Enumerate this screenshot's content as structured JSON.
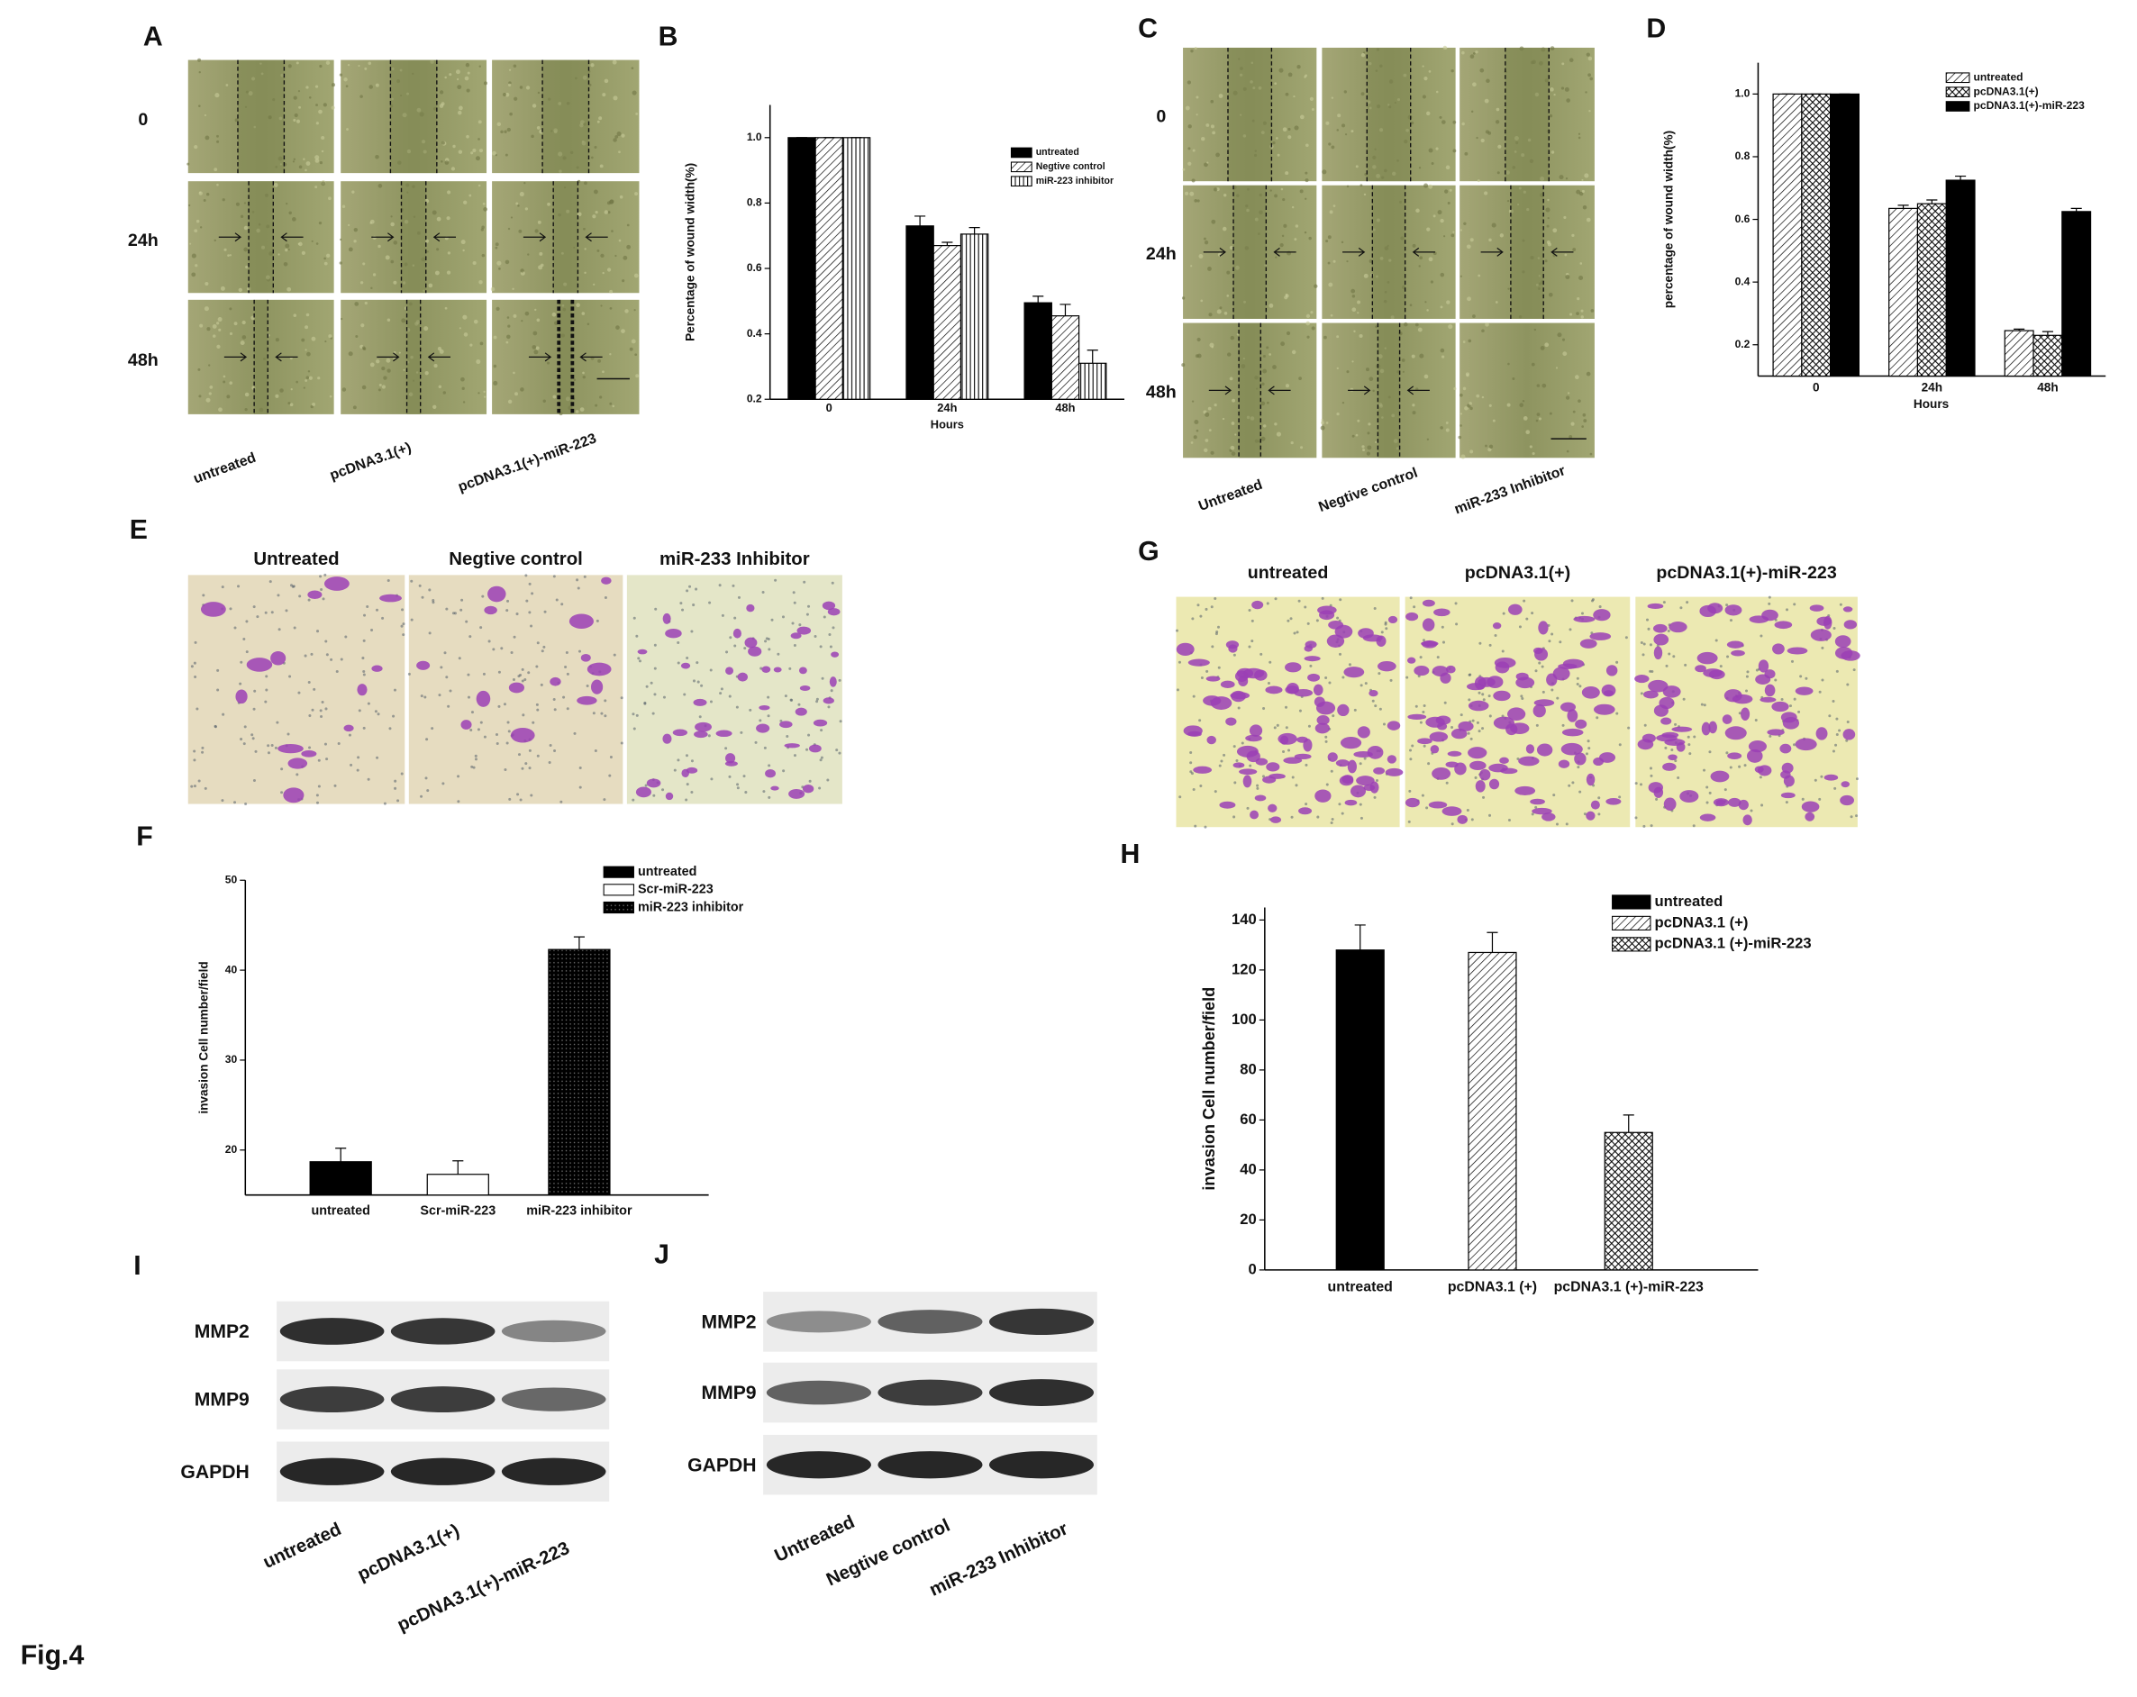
{
  "figure_label": "Fig.4",
  "panels": {
    "A": {
      "letter": "A",
      "rows": [
        "0",
        "24h",
        "48h"
      ],
      "columns": [
        "untreated",
        "pcDNA3.1(+)",
        "pcDNA3.1(+)-miR-223"
      ]
    },
    "C": {
      "letter": "C",
      "rows": [
        "0",
        "24h",
        "48h"
      ],
      "columns": [
        "Untreated",
        "Negtive control",
        "miR-233 Inhibitor"
      ]
    },
    "E": {
      "letter": "E",
      "columns": [
        "Untreated",
        "Negtive control",
        "miR-233 Inhibitor"
      ]
    },
    "G": {
      "letter": "G",
      "columns": [
        "untreated",
        "pcDNA3.1(+)",
        "pcDNA3.1(+)-miR-223"
      ]
    },
    "I": {
      "letter": "I",
      "proteins": [
        "MMP2",
        "MMP9",
        "GAPDH"
      ],
      "columns": [
        "untreated",
        "pcDNA3.1(+)",
        "pcDNA3.1(+)-miR-223"
      ]
    },
    "J": {
      "letter": "J",
      "proteins": [
        "MMP2",
        "MMP9",
        "GAPDH"
      ],
      "columns": [
        "Untreated",
        "Negtive control",
        "miR-233 Inhibitor"
      ]
    }
  },
  "chart_data": [
    {
      "panel": "B",
      "type": "bar",
      "y_label": "Percentage of wound width(%)",
      "x_label": "Hours",
      "categories": [
        "0",
        "24h",
        "48h"
      ],
      "ylim": [
        0.2,
        1.1
      ],
      "yticks": [
        0.2,
        0.4,
        0.6,
        0.8,
        {
          "value": 1,
          "label": "1.0"
        }
      ],
      "series": [
        {
          "name": "untreated",
          "color": "#000000",
          "pattern": "solid",
          "values": [
            1.0,
            0.73,
            0.495
          ],
          "errors": [
            0,
            0.03,
            0.02
          ]
        },
        {
          "name": "Negtive control",
          "color": "#000000",
          "pattern": "diagonal",
          "values": [
            1.0,
            0.67,
            0.455
          ],
          "errors": [
            0,
            0.01,
            0.035
          ]
        },
        {
          "name": "miR-223 inhibitor",
          "color": "#000000",
          "pattern": "vertical",
          "values": [
            1.0,
            0.705,
            0.31
          ],
          "errors": [
            0,
            0.02,
            0.04
          ]
        }
      ]
    },
    {
      "panel": "D",
      "type": "bar",
      "y_label": "percentage of wound width(%)",
      "x_label": "Hours",
      "categories": [
        "0",
        "24h",
        "48h"
      ],
      "ylim": [
        0.1,
        1.1
      ],
      "yticks": [
        0.2,
        0.4,
        0.6,
        0.8,
        {
          "value": 1,
          "label": "1.0"
        }
      ],
      "series": [
        {
          "name": "untreated",
          "color": "#000000",
          "pattern": "diagonal",
          "values": [
            1.0,
            0.635,
            0.245
          ],
          "errors": [
            0,
            0.01,
            0.005
          ]
        },
        {
          "name": "pcDNA3.1(+)",
          "color": "#000000",
          "pattern": "crosshatch",
          "values": [
            1.0,
            0.65,
            0.23
          ],
          "errors": [
            0,
            0.012,
            0.012
          ]
        },
        {
          "name": "pcDNA3.1(+)-miR-223",
          "color": "#000000",
          "pattern": "solid",
          "values": [
            1.0,
            0.725,
            0.625
          ],
          "errors": [
            0,
            0.013,
            0.01
          ]
        }
      ]
    },
    {
      "panel": "F",
      "type": "bar",
      "y_label": "invasion Cell number/field",
      "categories": [
        "untreated",
        "Scr-miR-223",
        "miR-223 inhibitor"
      ],
      "values": [
        18.7,
        17.3,
        42.3
      ],
      "errors": [
        1.5,
        1.5,
        1.4
      ],
      "color": "#000000",
      "bar_patterns": [
        "solid",
        "white",
        "dotted"
      ],
      "legend": [
        "untreated",
        "Scr-miR-223",
        "miR-223 inhibitor"
      ],
      "ylim": [
        15,
        50
      ],
      "yticks": [
        20,
        30,
        40,
        50
      ]
    },
    {
      "panel": "H",
      "type": "bar",
      "y_label": "invasion Cell number/field",
      "categories": [
        "untreated",
        "pcDNA3.1 (+)",
        "pcDNA3.1 (+)-miR-223"
      ],
      "values": [
        128,
        127,
        55
      ],
      "errors": [
        10,
        8,
        7
      ],
      "color": "#000000",
      "bar_patterns": [
        "solid",
        "diagonal",
        "crosshatch"
      ],
      "legend": [
        "untreated",
        "pcDNA3.1 (+)",
        "pcDNA3.1 (+)-miR-223"
      ],
      "ylim": [
        0,
        145
      ],
      "yticks": [
        0,
        20,
        40,
        60,
        80,
        100,
        120,
        140
      ]
    }
  ]
}
